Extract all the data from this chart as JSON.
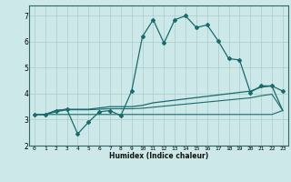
{
  "xlabel": "Humidex (Indice chaleur)",
  "ylabel": "",
  "xlim": [
    -0.5,
    23.5
  ],
  "ylim": [
    2.0,
    7.4
  ],
  "xticks": [
    0,
    1,
    2,
    3,
    4,
    5,
    6,
    7,
    8,
    9,
    10,
    11,
    12,
    13,
    14,
    15,
    16,
    17,
    18,
    19,
    20,
    21,
    22,
    23
  ],
  "yticks": [
    2,
    3,
    4,
    5,
    6,
    7
  ],
  "bg_color": "#cce8e8",
  "grid_color": "#aacccc",
  "line_color": "#1a6b6b",
  "series": [
    {
      "x": [
        0,
        1,
        2,
        3,
        4,
        5,
        6,
        7,
        8,
        9,
        10,
        11,
        12,
        13,
        14,
        15,
        16,
        17,
        18,
        19,
        20,
        21,
        22,
        23
      ],
      "y": [
        3.2,
        3.2,
        3.35,
        3.4,
        2.45,
        2.9,
        3.3,
        3.35,
        3.15,
        4.1,
        6.2,
        6.85,
        5.95,
        6.85,
        7.0,
        6.55,
        6.65,
        6.05,
        5.35,
        5.3,
        4.05,
        4.3,
        4.3,
        4.1
      ],
      "marker": "D",
      "markersize": 2.0,
      "linewidth": 0.9
    },
    {
      "x": [
        0,
        1,
        2,
        3,
        4,
        5,
        6,
        7,
        8,
        9,
        10,
        11,
        12,
        13,
        14,
        15,
        16,
        17,
        18,
        19,
        20,
        21,
        22,
        23
      ],
      "y": [
        3.2,
        3.2,
        3.35,
        3.4,
        3.4,
        3.4,
        3.45,
        3.5,
        3.5,
        3.5,
        3.55,
        3.65,
        3.7,
        3.75,
        3.8,
        3.85,
        3.9,
        3.95,
        4.0,
        4.05,
        4.1,
        4.25,
        4.3,
        3.35
      ],
      "marker": null,
      "markersize": 0,
      "linewidth": 0.9
    },
    {
      "x": [
        0,
        1,
        2,
        3,
        4,
        5,
        6,
        7,
        8,
        9,
        10,
        11,
        12,
        13,
        14,
        15,
        16,
        17,
        18,
        19,
        20,
        21,
        22,
        23
      ],
      "y": [
        3.2,
        3.2,
        3.3,
        3.38,
        3.38,
        3.38,
        3.4,
        3.42,
        3.42,
        3.42,
        3.44,
        3.48,
        3.52,
        3.56,
        3.6,
        3.64,
        3.68,
        3.72,
        3.76,
        3.8,
        3.84,
        3.92,
        3.98,
        3.35
      ],
      "marker": null,
      "markersize": 0,
      "linewidth": 0.8
    },
    {
      "x": [
        0,
        1,
        2,
        3,
        4,
        5,
        6,
        7,
        8,
        9,
        10,
        11,
        12,
        13,
        14,
        15,
        16,
        17,
        18,
        19,
        20,
        21,
        22,
        23
      ],
      "y": [
        3.2,
        3.2,
        3.2,
        3.2,
        3.2,
        3.2,
        3.2,
        3.2,
        3.2,
        3.2,
        3.2,
        3.2,
        3.2,
        3.2,
        3.2,
        3.2,
        3.2,
        3.2,
        3.2,
        3.2,
        3.2,
        3.2,
        3.2,
        3.35
      ],
      "marker": null,
      "markersize": 0,
      "linewidth": 0.8
    }
  ]
}
